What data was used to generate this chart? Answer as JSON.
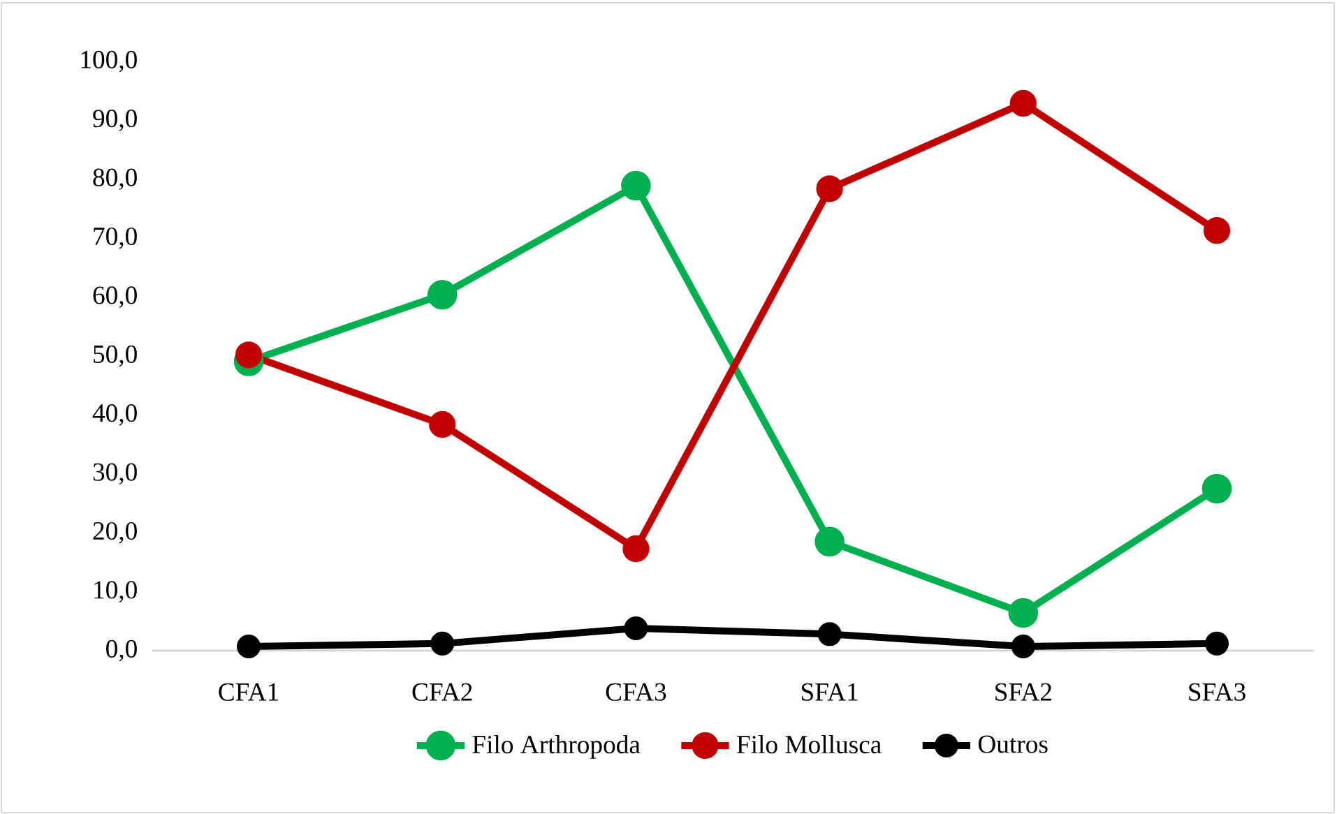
{
  "chart_data": {
    "type": "line",
    "categories": [
      "CFA1",
      "CFA2",
      "CFA3",
      "SFA1",
      "SFA2",
      "SFA3"
    ],
    "series": [
      {
        "name": "Filo Arthropoda",
        "color": "#00b050",
        "values": [
          49.1,
          60.4,
          78.9,
          18.5,
          6.4,
          27.5
        ]
      },
      {
        "name": "Filo Mollusca",
        "color": "#c00000",
        "values": [
          50.2,
          38.4,
          17.3,
          78.4,
          92.9,
          71.3
        ]
      },
      {
        "name": "Outros",
        "color": "#000000",
        "values": [
          0.7,
          1.2,
          3.8,
          2.8,
          0.7,
          1.2
        ]
      }
    ],
    "ylim": [
      0,
      100
    ],
    "yticks": [
      {
        "value": 0,
        "label": "0,0"
      },
      {
        "value": 10,
        "label": "10,0"
      },
      {
        "value": 20,
        "label": "20,0"
      },
      {
        "value": 30,
        "label": "30,0"
      },
      {
        "value": 40,
        "label": "40,0"
      },
      {
        "value": 50,
        "label": "50,0"
      },
      {
        "value": 60,
        "label": "60,0"
      },
      {
        "value": 70,
        "label": "70,0"
      },
      {
        "value": 80,
        "label": "80,0"
      },
      {
        "value": 90,
        "label": "90,0"
      },
      {
        "value": 100,
        "label": "100,0"
      }
    ],
    "marker": "circle",
    "line_style": "solid",
    "legend": "bottom"
  }
}
